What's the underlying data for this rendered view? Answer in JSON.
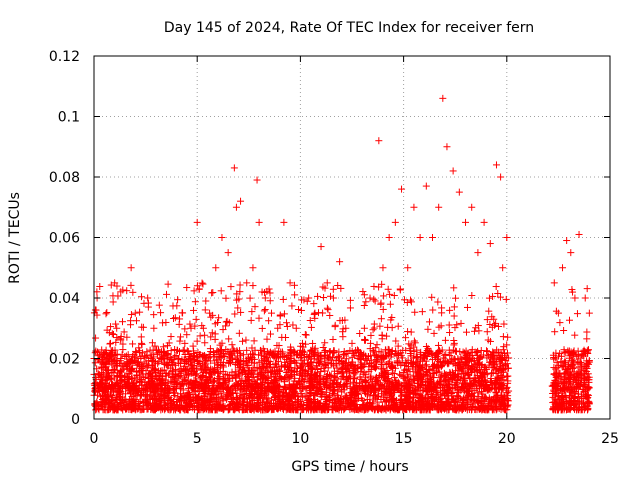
{
  "chart_data": {
    "type": "scatter",
    "title": "Day 145 of 2024, Rate Of TEC Index for receiver fern",
    "xlabel": "GPS time / hours",
    "ylabel": "ROTI / TECUs",
    "xlim": [
      0,
      25
    ],
    "ylim": [
      0,
      0.12
    ],
    "xticks": [
      "0",
      "5",
      "10",
      "15",
      "20",
      "25"
    ],
    "yticks": [
      "0",
      "0.02",
      "0.04",
      "0.06",
      "0.08",
      "0.1",
      "0.12"
    ],
    "grid": true,
    "marker": "plus",
    "color": "#ff0000",
    "series": [
      {
        "x": [
          0.0,
          0.1,
          0.15,
          0.2,
          0.3,
          0.5,
          0.8,
          1.0,
          1.1,
          1.3,
          1.6,
          1.8,
          2.0,
          2.3,
          2.6,
          2.9,
          3.2,
          3.5,
          3.8,
          4.1,
          4.4,
          4.7,
          5.0,
          5.1,
          5.3,
          5.6,
          5.9,
          6.2,
          6.5,
          6.8,
          6.9,
          7.1,
          7.4,
          7.7,
          7.9,
          8.0,
          8.3,
          8.6,
          8.9,
          9.2,
          9.5,
          9.8,
          10.1,
          10.4,
          10.7,
          11.0,
          11.3,
          11.6,
          11.9,
          12.2,
          12.5,
          12.8,
          13.1,
          13.4,
          13.8,
          14.0,
          14.3,
          14.6,
          14.9,
          15.2,
          15.5,
          15.8,
          16.1,
          16.4,
          16.7,
          16.9,
          17.1,
          17.4,
          17.7,
          18.0,
          18.3,
          18.6,
          18.9,
          19.2,
          19.5,
          19.7,
          19.8,
          20.0,
          22.3,
          22.5,
          22.7,
          22.9,
          23.1,
          23.3,
          23.5,
          23.8,
          24.0
        ],
        "y": [
          0.02,
          0.036,
          0.04,
          0.015,
          0.012,
          0.018,
          0.025,
          0.045,
          0.03,
          0.02,
          0.018,
          0.05,
          0.035,
          0.025,
          0.04,
          0.03,
          0.02,
          0.015,
          0.018,
          0.02,
          0.025,
          0.03,
          0.065,
          0.043,
          0.03,
          0.035,
          0.05,
          0.06,
          0.055,
          0.083,
          0.07,
          0.072,
          0.045,
          0.05,
          0.079,
          0.065,
          0.04,
          0.035,
          0.03,
          0.065,
          0.045,
          0.03,
          0.025,
          0.04,
          0.035,
          0.057,
          0.045,
          0.04,
          0.052,
          0.03,
          0.025,
          0.02,
          0.03,
          0.025,
          0.092,
          0.05,
          0.06,
          0.065,
          0.076,
          0.05,
          0.07,
          0.06,
          0.077,
          0.06,
          0.07,
          0.106,
          0.09,
          0.082,
          0.075,
          0.065,
          0.07,
          0.055,
          0.065,
          0.058,
          0.084,
          0.08,
          0.05,
          0.06,
          0.045,
          0.035,
          0.05,
          0.059,
          0.055,
          0.04,
          0.061,
          0.04,
          0.035
        ]
      }
    ],
    "gap": [
      20.1,
      22.2
    ]
  }
}
